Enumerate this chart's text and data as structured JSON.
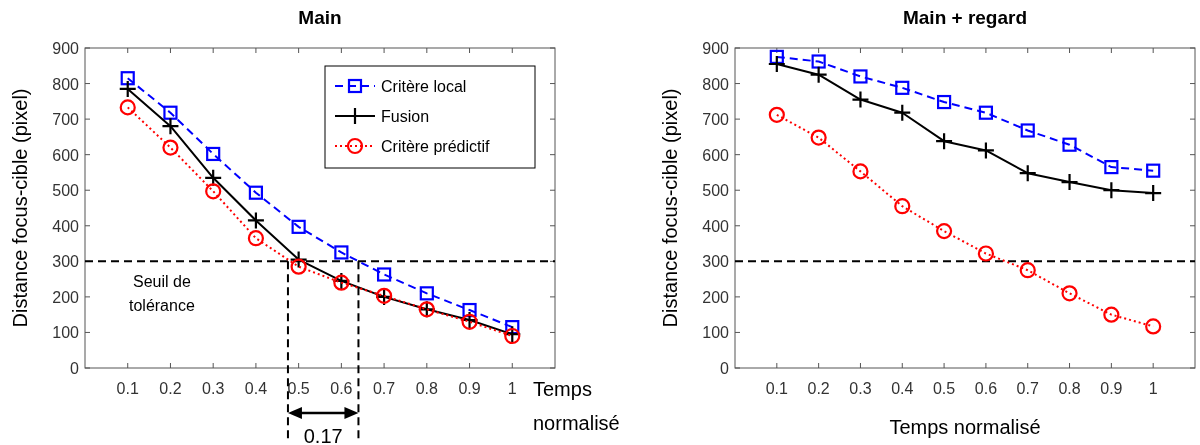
{
  "chart_data": [
    {
      "type": "line",
      "title": "Main",
      "xlabel": "Temps normalisé",
      "ylabel": "Distance focus-cible (pixel)",
      "x": [
        0.1,
        0.2,
        0.3,
        0.4,
        0.5,
        0.6,
        0.7,
        0.8,
        0.9,
        1
      ],
      "xlim": [
        0,
        1.1
      ],
      "xticks": [
        0.1,
        0.2,
        0.3,
        0.4,
        0.5,
        0.6,
        0.7,
        0.8,
        0.9,
        1
      ],
      "ylim": [
        0,
        900
      ],
      "yticks": [
        0,
        100,
        200,
        300,
        400,
        500,
        600,
        700,
        800,
        900
      ],
      "grid": false,
      "legend": "top right",
      "series": [
        {
          "name": "Critère local",
          "color": "#0000ff",
          "marker": "square",
          "line_style": "dashed",
          "values": [
            815,
            718,
            602,
            493,
            397,
            325,
            263,
            210,
            163,
            115
          ]
        },
        {
          "name": "Fusion",
          "color": "#000000",
          "marker": "cross",
          "line_style": "solid",
          "values": [
            785,
            680,
            535,
            415,
            305,
            245,
            200,
            165,
            135,
            95
          ]
        },
        {
          "name": "Critère prédictif",
          "color": "#ff0000",
          "marker": "circle",
          "line_style": "dotted",
          "values": [
            733,
            620,
            497,
            365,
            285,
            240,
            203,
            165,
            130,
            90
          ]
        }
      ],
      "ref_lines": [
        {
          "axis": "y",
          "value": 300,
          "label": "Seuil de tolérance",
          "color": "#000000",
          "line_style": "dashed"
        },
        {
          "axis": "x",
          "value": 0.475,
          "color": "#000000",
          "line_style": "dashed"
        },
        {
          "axis": "x",
          "value": 0.64,
          "color": "#000000",
          "line_style": "dashed"
        }
      ],
      "annotations": [
        "0.17"
      ]
    },
    {
      "type": "line",
      "title": "Main + regard",
      "xlabel": "Temps normalisé",
      "ylabel": "Distance focus-cible (pixel)",
      "x": [
        0.1,
        0.2,
        0.3,
        0.4,
        0.5,
        0.6,
        0.7,
        0.8,
        0.9,
        1
      ],
      "xlim": [
        0,
        1.1
      ],
      "xticks": [
        0.1,
        0.2,
        0.3,
        0.4,
        0.5,
        0.6,
        0.7,
        0.8,
        0.9,
        1
      ],
      "ylim": [
        0,
        900
      ],
      "yticks": [
        0,
        100,
        200,
        300,
        400,
        500,
        600,
        700,
        800,
        900
      ],
      "grid": false,
      "legend": false,
      "series": [
        {
          "color": "#0000ff",
          "marker": "square",
          "line_style": "dashed",
          "values": [
            875,
            862,
            820,
            788,
            748,
            718,
            668,
            628,
            565,
            555
          ]
        },
        {
          "color": "#000000",
          "marker": "cross",
          "line_style": "solid",
          "values": [
            855,
            825,
            755,
            718,
            638,
            612,
            548,
            523,
            500,
            492
          ]
        },
        {
          "color": "#ff0000",
          "marker": "circle",
          "line_style": "dotted",
          "values": [
            712,
            648,
            553,
            455,
            385,
            322,
            275,
            210,
            150,
            117
          ]
        }
      ],
      "ref_lines": [
        {
          "axis": "y",
          "value": 300,
          "color": "#000000",
          "line_style": "dashed"
        }
      ]
    }
  ]
}
